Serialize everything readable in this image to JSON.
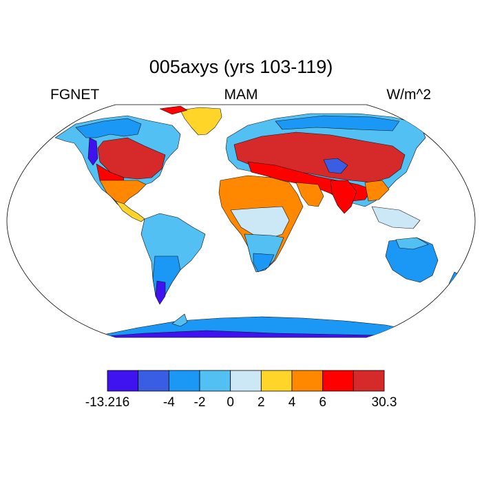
{
  "title": "005axys (yrs 103-119)",
  "left_label": "FGNET",
  "center_label": "MAM",
  "right_label": "W/m^2",
  "colorbar": {
    "colors": [
      "#3f12f0",
      "#3a5ee3",
      "#1b98f6",
      "#52c0f3",
      "#cce8f6",
      "#ffd52a",
      "#ff8800",
      "#ff0000",
      "#d62a2a"
    ],
    "labels": [
      "-13.216",
      "-4",
      "-2",
      "0",
      "2",
      "4",
      "6",
      "30.3"
    ],
    "label_boundaries": [
      0,
      2,
      3,
      4,
      5,
      6,
      7,
      9
    ]
  },
  "map": {
    "projection": "robinson",
    "background": "#ffffff",
    "coastline_color": "#000000"
  }
}
